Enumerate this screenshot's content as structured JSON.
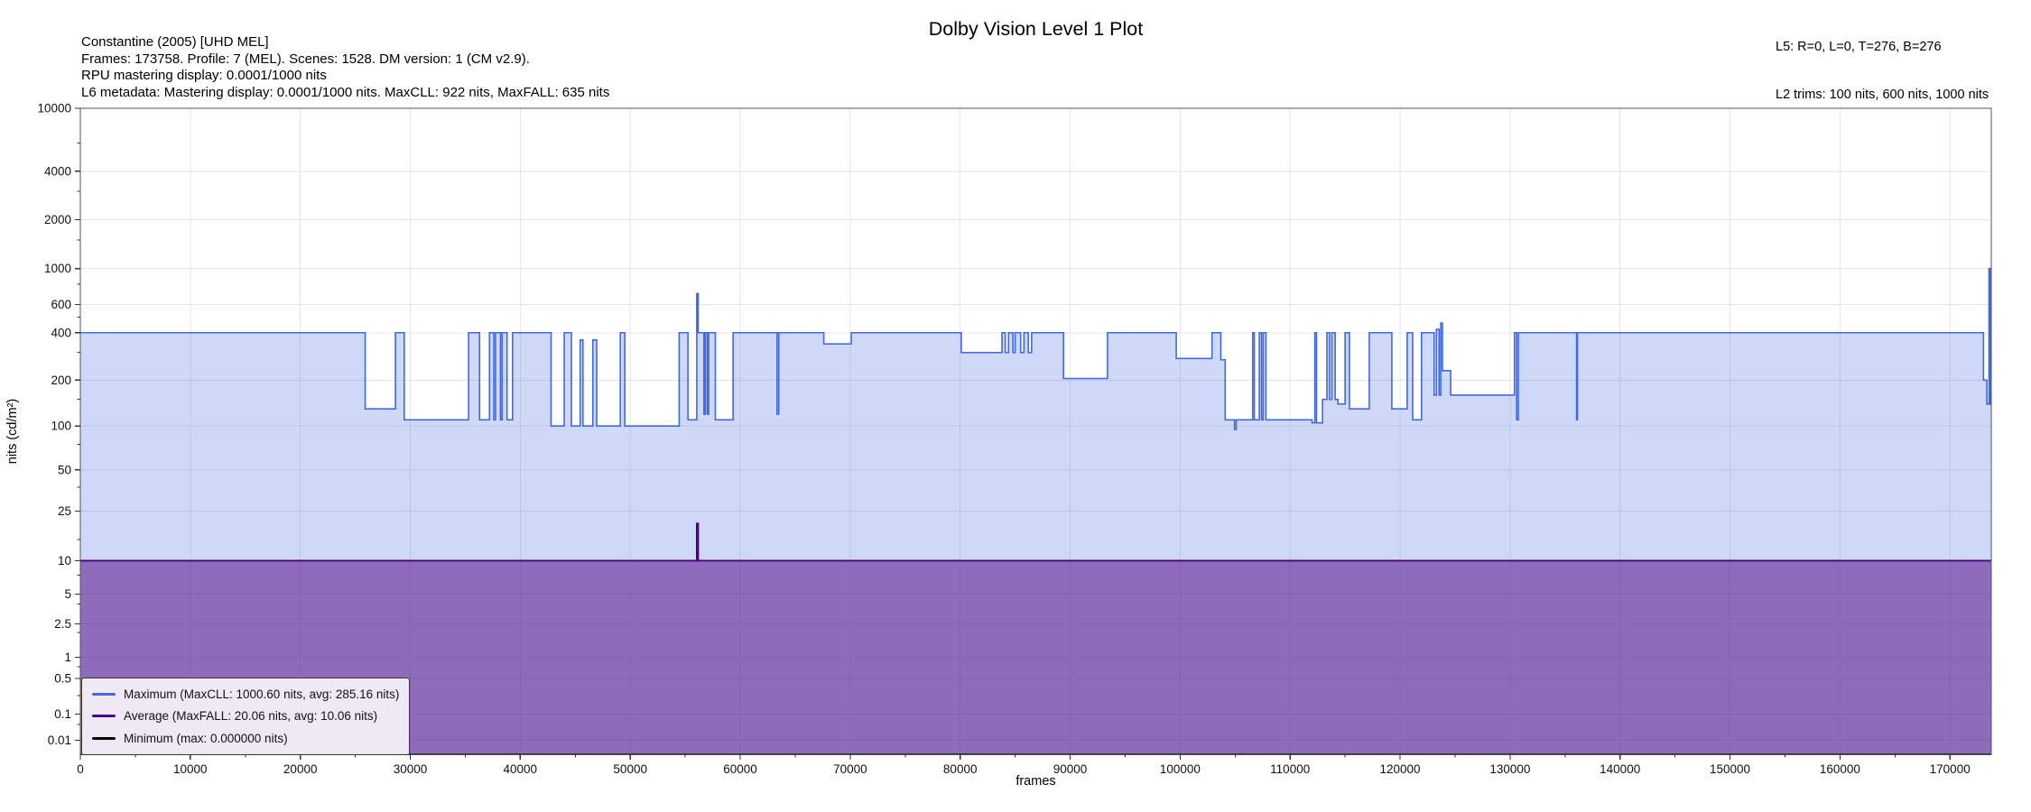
{
  "title": "Dolby Vision Level 1 Plot",
  "header": {
    "info_lines": [
      "Constantine (2005) [UHD MEL]",
      "Frames: 173758. Profile: 7 (MEL). Scenes: 1528. DM version: 1 (CM v2.9).",
      "RPU mastering display: 0.0001/1000 nits",
      "L6 metadata: Mastering display: 0.0001/1000 nits. MaxCLL: 922 nits, MaxFALL: 635 nits"
    ],
    "l5": "L5: R=0, L=0, T=276, B=276",
    "l2": "L2 trims: 100 nits, 600 nits, 1000 nits"
  },
  "axes": {
    "xlabel": "frames",
    "ylabel": "nits (cd/m²)",
    "grid_color": "#e6e6e6",
    "spine_color": "#555555",
    "tick_label_color": "#111111"
  },
  "legend": {
    "items": [
      {
        "label": "Maximum (MaxCLL: 1000.60 nits, avg: 285.16 nits)",
        "color": "#4169e1"
      },
      {
        "label": "Average (MaxFALL: 20.06 nits, avg: 10.06 nits)",
        "color": "#4b0082"
      },
      {
        "label": "Minimum (max: 0.000000 nits)",
        "color": "#000000"
      }
    ]
  },
  "chart_data": {
    "type": "area",
    "x_unit": "frames",
    "xlim": [
      0,
      173758
    ],
    "x_tick_step": 10000,
    "x_minor_step": 5000,
    "y_scale": "pq_st2084",
    "ylim_nits": [
      0,
      10000
    ],
    "y_ticks": [
      10000,
      4000,
      2000,
      1000,
      600,
      400,
      200,
      100,
      50,
      25,
      10,
      5,
      2.5,
      1,
      0.5,
      0.1,
      0.01
    ],
    "y_minor_ticks": [
      6000,
      3000,
      1500,
      800,
      500,
      300,
      150,
      75,
      37.5,
      15,
      7.5,
      4,
      2,
      0.75,
      0.25,
      0.05
    ],
    "grid": true,
    "legend_position": "lower-left",
    "series": [
      {
        "name": "Maximum",
        "color": "#4169e1",
        "fill": "rgba(65,105,225,0.25)",
        "line_width": 1.6,
        "segments": [
          [
            0,
            25900,
            400
          ],
          [
            25900,
            28650,
            130
          ],
          [
            28650,
            29450,
            400
          ],
          [
            29450,
            35300,
            110
          ],
          [
            35300,
            36300,
            400
          ],
          [
            36300,
            37200,
            110
          ],
          [
            37200,
            37600,
            400
          ],
          [
            37600,
            37750,
            110
          ],
          [
            37750,
            38200,
            400
          ],
          [
            38200,
            38350,
            110
          ],
          [
            38350,
            38800,
            400
          ],
          [
            38800,
            39300,
            110
          ],
          [
            39300,
            42800,
            400
          ],
          [
            42800,
            44000,
            100
          ],
          [
            44000,
            44650,
            400
          ],
          [
            44650,
            45450,
            100
          ],
          [
            45450,
            45700,
            360
          ],
          [
            45700,
            46600,
            100
          ],
          [
            46600,
            46950,
            360
          ],
          [
            46950,
            49100,
            100
          ],
          [
            49100,
            49500,
            400
          ],
          [
            49500,
            54450,
            100
          ],
          [
            54450,
            55250,
            400
          ],
          [
            55250,
            56050,
            110
          ],
          [
            56050,
            56180,
            700
          ],
          [
            56180,
            56700,
            400
          ],
          [
            56700,
            56820,
            120
          ],
          [
            56820,
            57000,
            400
          ],
          [
            57000,
            57130,
            120
          ],
          [
            57130,
            57740,
            400
          ],
          [
            57740,
            59350,
            110
          ],
          [
            59350,
            63350,
            400
          ],
          [
            63350,
            63500,
            120
          ],
          [
            63500,
            67600,
            400
          ],
          [
            67600,
            70100,
            340
          ],
          [
            70100,
            80100,
            400
          ],
          [
            80100,
            83800,
            300
          ],
          [
            83800,
            84100,
            400
          ],
          [
            84100,
            84400,
            300
          ],
          [
            84400,
            84800,
            400
          ],
          [
            84800,
            85000,
            300
          ],
          [
            85000,
            85500,
            400
          ],
          [
            85500,
            85800,
            300
          ],
          [
            85800,
            86200,
            400
          ],
          [
            86200,
            86500,
            300
          ],
          [
            86500,
            89400,
            400
          ],
          [
            89400,
            93400,
            205
          ],
          [
            93400,
            99650,
            400
          ],
          [
            99650,
            102900,
            275
          ],
          [
            102900,
            103700,
            400
          ],
          [
            103700,
            104100,
            270
          ],
          [
            104100,
            104950,
            110
          ],
          [
            104950,
            105100,
            95
          ],
          [
            105100,
            106600,
            110
          ],
          [
            106600,
            106750,
            400
          ],
          [
            106750,
            107200,
            110
          ],
          [
            107200,
            107400,
            400
          ],
          [
            107400,
            107550,
            110
          ],
          [
            107550,
            107800,
            400
          ],
          [
            107800,
            112000,
            110
          ],
          [
            112000,
            112250,
            105
          ],
          [
            112250,
            112400,
            400
          ],
          [
            112400,
            112950,
            105
          ],
          [
            112950,
            113350,
            150
          ],
          [
            113350,
            113600,
            400
          ],
          [
            113600,
            113800,
            150
          ],
          [
            113800,
            114100,
            400
          ],
          [
            114100,
            114350,
            150
          ],
          [
            114350,
            115000,
            140
          ],
          [
            115000,
            115400,
            400
          ],
          [
            115400,
            117200,
            130
          ],
          [
            117200,
            119250,
            400
          ],
          [
            119250,
            120650,
            130
          ],
          [
            120650,
            121150,
            400
          ],
          [
            121150,
            121950,
            110
          ],
          [
            121950,
            123100,
            400
          ],
          [
            123100,
            123300,
            160
          ],
          [
            123300,
            123550,
            420
          ],
          [
            123550,
            123700,
            160
          ],
          [
            123700,
            123850,
            460
          ],
          [
            123850,
            124600,
            230
          ],
          [
            124600,
            130400,
            160
          ],
          [
            130400,
            130600,
            400
          ],
          [
            130600,
            130750,
            110
          ],
          [
            130750,
            136050,
            400
          ],
          [
            136050,
            136130,
            110
          ],
          [
            136130,
            173050,
            400
          ],
          [
            173050,
            173350,
            200
          ],
          [
            173350,
            173550,
            140
          ],
          [
            173550,
            173680,
            1000.6
          ],
          [
            173680,
            173758,
            140
          ]
        ]
      },
      {
        "name": "Average",
        "color": "#4b0082",
        "fill": "rgba(75,0,130,0.5)",
        "line_width": 1.8,
        "segments": [
          [
            0,
            56050,
            10
          ],
          [
            56050,
            56180,
            20.06
          ],
          [
            56180,
            173758,
            10
          ]
        ]
      },
      {
        "name": "Minimum",
        "color": "#000000",
        "fill": null,
        "line_width": 1.8,
        "segments": [
          [
            0,
            173758,
            0
          ]
        ]
      }
    ]
  }
}
